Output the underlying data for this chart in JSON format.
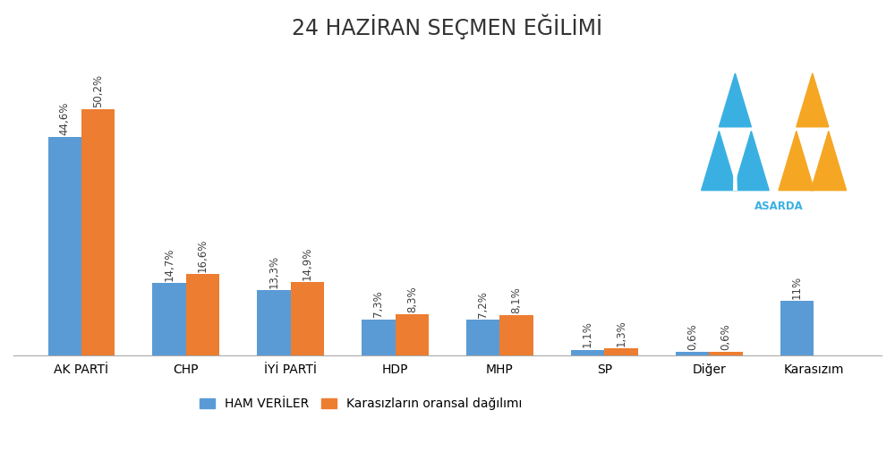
{
  "title": "24 HAZİRAN SEÇMEN EĞİLİMİ",
  "categories": [
    "AK PARTİ",
    "CHP",
    "İYİ PARTİ",
    "HDP",
    "MHP",
    "SP",
    "Diğer",
    "Karasızım"
  ],
  "ham_veriler": [
    44.6,
    14.7,
    13.3,
    7.3,
    7.2,
    1.1,
    0.6,
    11.0
  ],
  "kararsi_dagilim": [
    50.2,
    16.6,
    14.9,
    8.3,
    8.1,
    1.3,
    0.6,
    null
  ],
  "ham_labels": [
    "44,6%",
    "14,7%",
    "13,3%",
    "7,3%",
    "7,2%",
    "1,1%",
    "0,6%",
    "11%"
  ],
  "kararsi_labels": [
    "50,2%",
    "16,6%",
    "14,9%",
    "8,3%",
    "8,1%",
    "1,3%",
    "0,6%",
    null
  ],
  "ham_color": "#5b9bd5",
  "kararsi_color": "#ed7d31",
  "bar_width": 0.32,
  "ylim": [
    0,
    62
  ],
  "background_color": "#ffffff",
  "title_fontsize": 17,
  "label_fontsize": 8.5,
  "legend_labels": [
    "HAM VERİLER",
    "Karasızların oransal dağılımı"
  ],
  "grid_color": "#d9d9d9",
  "blue_logo": "#3ab0e2",
  "orange_logo": "#f5a623"
}
